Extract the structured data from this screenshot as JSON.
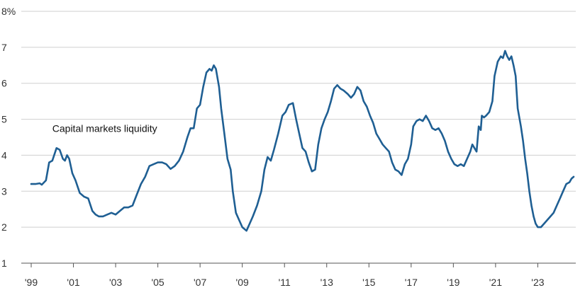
{
  "chart_data": {
    "type": "line",
    "title": "",
    "xlabel": "",
    "ylabel": "",
    "xlim": [
      1999.0,
      2024.8
    ],
    "ylim": [
      1,
      8
    ],
    "grid": true,
    "y_ticks": [
      {
        "value": 1,
        "label": "1"
      },
      {
        "value": 2,
        "label": "2"
      },
      {
        "value": 3,
        "label": "3"
      },
      {
        "value": 4,
        "label": "4"
      },
      {
        "value": 5,
        "label": "5"
      },
      {
        "value": 6,
        "label": "6"
      },
      {
        "value": 7,
        "label": "7"
      },
      {
        "value": 8,
        "label": "8%"
      }
    ],
    "x_ticks": [
      {
        "value": 1999,
        "label": "'99"
      },
      {
        "value": 2001,
        "label": "'01"
      },
      {
        "value": 2003,
        "label": "'03"
      },
      {
        "value": 2005,
        "label": "'05"
      },
      {
        "value": 2007,
        "label": "'07"
      },
      {
        "value": 2009,
        "label": "'09"
      },
      {
        "value": 2011,
        "label": "'11"
      },
      {
        "value": 2013,
        "label": "'13"
      },
      {
        "value": 2015,
        "label": "'15"
      },
      {
        "value": 2017,
        "label": "'17"
      },
      {
        "value": 2019,
        "label": "'19"
      },
      {
        "value": 2021,
        "label": "'21"
      },
      {
        "value": 2023,
        "label": "'23"
      }
    ],
    "annotation": {
      "text": "Capital markets liquidity",
      "x": 2000.0,
      "y": 4.65
    },
    "series": [
      {
        "name": "Capital markets liquidity",
        "color": "#1f5f93",
        "points": [
          [
            1999.0,
            3.2
          ],
          [
            1999.2,
            3.2
          ],
          [
            1999.4,
            3.22
          ],
          [
            1999.5,
            3.18
          ],
          [
            1999.7,
            3.3
          ],
          [
            1999.85,
            3.8
          ],
          [
            2000.0,
            3.85
          ],
          [
            2000.2,
            4.2
          ],
          [
            2000.35,
            4.15
          ],
          [
            2000.5,
            3.9
          ],
          [
            2000.6,
            3.85
          ],
          [
            2000.7,
            4.0
          ],
          [
            2000.8,
            3.9
          ],
          [
            2000.95,
            3.5
          ],
          [
            2001.1,
            3.3
          ],
          [
            2001.3,
            2.95
          ],
          [
            2001.5,
            2.85
          ],
          [
            2001.7,
            2.8
          ],
          [
            2001.9,
            2.45
          ],
          [
            2002.05,
            2.35
          ],
          [
            2002.2,
            2.3
          ],
          [
            2002.4,
            2.3
          ],
          [
            2002.6,
            2.35
          ],
          [
            2002.8,
            2.4
          ],
          [
            2003.0,
            2.35
          ],
          [
            2003.2,
            2.45
          ],
          [
            2003.4,
            2.55
          ],
          [
            2003.6,
            2.55
          ],
          [
            2003.8,
            2.6
          ],
          [
            2004.0,
            2.9
          ],
          [
            2004.2,
            3.2
          ],
          [
            2004.4,
            3.4
          ],
          [
            2004.6,
            3.7
          ],
          [
            2004.8,
            3.75
          ],
          [
            2005.0,
            3.8
          ],
          [
            2005.2,
            3.8
          ],
          [
            2005.4,
            3.75
          ],
          [
            2005.6,
            3.62
          ],
          [
            2005.8,
            3.7
          ],
          [
            2006.0,
            3.85
          ],
          [
            2006.2,
            4.1
          ],
          [
            2006.4,
            4.5
          ],
          [
            2006.55,
            4.75
          ],
          [
            2006.7,
            4.75
          ],
          [
            2006.85,
            5.3
          ],
          [
            2007.0,
            5.4
          ],
          [
            2007.15,
            5.9
          ],
          [
            2007.3,
            6.3
          ],
          [
            2007.45,
            6.4
          ],
          [
            2007.55,
            6.35
          ],
          [
            2007.65,
            6.5
          ],
          [
            2007.75,
            6.4
          ],
          [
            2007.9,
            5.9
          ],
          [
            2008.0,
            5.3
          ],
          [
            2008.15,
            4.6
          ],
          [
            2008.3,
            3.9
          ],
          [
            2008.45,
            3.6
          ],
          [
            2008.55,
            3.0
          ],
          [
            2008.7,
            2.4
          ],
          [
            2008.85,
            2.2
          ],
          [
            2009.0,
            2.0
          ],
          [
            2009.2,
            1.9
          ],
          [
            2009.35,
            2.1
          ],
          [
            2009.5,
            2.3
          ],
          [
            2009.7,
            2.6
          ],
          [
            2009.9,
            3.0
          ],
          [
            2010.05,
            3.6
          ],
          [
            2010.2,
            3.95
          ],
          [
            2010.35,
            3.85
          ],
          [
            2010.5,
            4.15
          ],
          [
            2010.7,
            4.6
          ],
          [
            2010.9,
            5.1
          ],
          [
            2011.05,
            5.2
          ],
          [
            2011.2,
            5.4
          ],
          [
            2011.4,
            5.45
          ],
          [
            2011.55,
            5.0
          ],
          [
            2011.7,
            4.6
          ],
          [
            2011.85,
            4.2
          ],
          [
            2012.0,
            4.1
          ],
          [
            2012.15,
            3.8
          ],
          [
            2012.3,
            3.55
          ],
          [
            2012.45,
            3.6
          ],
          [
            2012.6,
            4.3
          ],
          [
            2012.75,
            4.75
          ],
          [
            2012.9,
            5.0
          ],
          [
            2013.05,
            5.2
          ],
          [
            2013.2,
            5.5
          ],
          [
            2013.35,
            5.85
          ],
          [
            2013.5,
            5.95
          ],
          [
            2013.65,
            5.85
          ],
          [
            2013.8,
            5.8
          ],
          [
            2014.0,
            5.7
          ],
          [
            2014.15,
            5.6
          ],
          [
            2014.3,
            5.7
          ],
          [
            2014.45,
            5.9
          ],
          [
            2014.6,
            5.8
          ],
          [
            2014.75,
            5.5
          ],
          [
            2014.9,
            5.35
          ],
          [
            2015.05,
            5.1
          ],
          [
            2015.2,
            4.9
          ],
          [
            2015.35,
            4.6
          ],
          [
            2015.5,
            4.45
          ],
          [
            2015.65,
            4.3
          ],
          [
            2015.8,
            4.2
          ],
          [
            2015.95,
            4.1
          ],
          [
            2016.1,
            3.8
          ],
          [
            2016.25,
            3.6
          ],
          [
            2016.4,
            3.55
          ],
          [
            2016.55,
            3.45
          ],
          [
            2016.7,
            3.75
          ],
          [
            2016.85,
            3.9
          ],
          [
            2017.0,
            4.3
          ],
          [
            2017.1,
            4.8
          ],
          [
            2017.25,
            4.95
          ],
          [
            2017.4,
            5.0
          ],
          [
            2017.55,
            4.95
          ],
          [
            2017.7,
            5.1
          ],
          [
            2017.85,
            4.95
          ],
          [
            2018.0,
            4.75
          ],
          [
            2018.15,
            4.7
          ],
          [
            2018.3,
            4.75
          ],
          [
            2018.45,
            4.6
          ],
          [
            2018.6,
            4.4
          ],
          [
            2018.75,
            4.1
          ],
          [
            2018.9,
            3.9
          ],
          [
            2019.05,
            3.75
          ],
          [
            2019.2,
            3.7
          ],
          [
            2019.35,
            3.75
          ],
          [
            2019.5,
            3.7
          ],
          [
            2019.65,
            3.9
          ],
          [
            2019.8,
            4.1
          ],
          [
            2019.9,
            4.3
          ],
          [
            2020.0,
            4.2
          ],
          [
            2020.1,
            4.1
          ],
          [
            2020.2,
            4.8
          ],
          [
            2020.3,
            4.7
          ],
          [
            2020.35,
            5.1
          ],
          [
            2020.45,
            5.05
          ],
          [
            2020.55,
            5.1
          ],
          [
            2020.7,
            5.2
          ],
          [
            2020.85,
            5.5
          ],
          [
            2020.95,
            6.2
          ],
          [
            2021.1,
            6.6
          ],
          [
            2021.25,
            6.75
          ],
          [
            2021.35,
            6.7
          ],
          [
            2021.45,
            6.9
          ],
          [
            2021.55,
            6.75
          ],
          [
            2021.65,
            6.65
          ],
          [
            2021.75,
            6.75
          ],
          [
            2021.85,
            6.5
          ],
          [
            2021.95,
            6.2
          ],
          [
            2022.05,
            5.3
          ],
          [
            2022.2,
            4.8
          ],
          [
            2022.3,
            4.4
          ],
          [
            2022.4,
            3.9
          ],
          [
            2022.5,
            3.5
          ],
          [
            2022.6,
            3.0
          ],
          [
            2022.7,
            2.6
          ],
          [
            2022.8,
            2.3
          ],
          [
            2022.9,
            2.1
          ],
          [
            2023.0,
            2.0
          ],
          [
            2023.15,
            2.0
          ],
          [
            2023.3,
            2.1
          ],
          [
            2023.45,
            2.2
          ],
          [
            2023.6,
            2.3
          ],
          [
            2023.75,
            2.4
          ],
          [
            2023.9,
            2.6
          ],
          [
            2024.05,
            2.8
          ],
          [
            2024.2,
            3.0
          ],
          [
            2024.35,
            3.2
          ],
          [
            2024.5,
            3.25
          ],
          [
            2024.6,
            3.35
          ],
          [
            2024.7,
            3.4
          ]
        ]
      }
    ]
  }
}
